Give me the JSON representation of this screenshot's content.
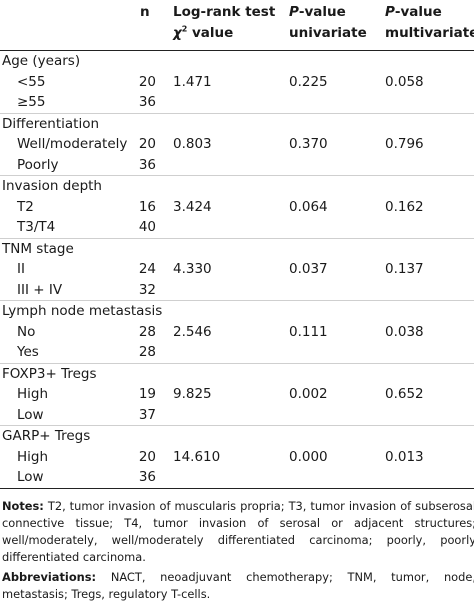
{
  "header": {
    "n": "n",
    "logrank_line1": "Log-rank test",
    "logrank_chi": "χ",
    "logrank_sup": "2",
    "logrank_line2": " value",
    "uni_p": "P",
    "uni_line1": "-value",
    "uni_line2": "univariate",
    "multi_p": "P",
    "multi_line1": "-value",
    "multi_line2": "multivariate"
  },
  "rows": [
    {
      "label": "Age (years)",
      "group": true
    },
    {
      "label": "<55",
      "n": "20",
      "chi": "1.471",
      "uni": "0.225",
      "multi": "0.058"
    },
    {
      "label": "≥55",
      "n": "36"
    },
    {
      "label": "Differentiation",
      "group": true
    },
    {
      "label": "Well/moderately",
      "n": "20",
      "chi": "0.803",
      "uni": "0.370",
      "multi": "0.796"
    },
    {
      "label": "Poorly",
      "n": "36"
    },
    {
      "label": "Invasion depth",
      "group": true
    },
    {
      "label": "T2",
      "n": "16",
      "chi": "3.424",
      "uni": "0.064",
      "multi": "0.162"
    },
    {
      "label": "T3/T4",
      "n": "40"
    },
    {
      "label": "TNM stage",
      "group": true
    },
    {
      "label": "II",
      "n": "24",
      "chi": "4.330",
      "uni": "0.037",
      "multi": "0.137"
    },
    {
      "label": "III + IV",
      "n": "32"
    },
    {
      "label": "Lymph node metastasis",
      "group": true
    },
    {
      "label": "No",
      "n": "28",
      "chi": "2.546",
      "uni": "0.111",
      "multi": "0.038"
    },
    {
      "label": "Yes",
      "n": "28"
    },
    {
      "label": "FOXP3+ Tregs",
      "group": true
    },
    {
      "label": "High",
      "n": "19",
      "chi": "9.825",
      "uni": "0.002",
      "multi": "0.652"
    },
    {
      "label": "Low",
      "n": "37"
    },
    {
      "label": "GARP+ Tregs",
      "group": true
    },
    {
      "label": "High",
      "n": "20",
      "chi": "14.610",
      "uni": "0.000",
      "multi": "0.013"
    },
    {
      "label": "Low",
      "n": "36"
    }
  ],
  "notes": {
    "notes_label": "Notes:",
    "notes_text": " T2, tumor invasion of muscularis propria; T3, tumor invasion of subserosal connective tissue; T4, tumor invasion of serosal or adjacent structures; well/moderately, well/moderately differentiated carcinoma; poorly, poorly differentiated carcinoma.",
    "abbr_label": "Abbreviations:",
    "abbr_text": " NACT, neoadjuvant chemotherapy; TNM, tumor, node, metastasis; Tregs, regulatory T-cells."
  }
}
